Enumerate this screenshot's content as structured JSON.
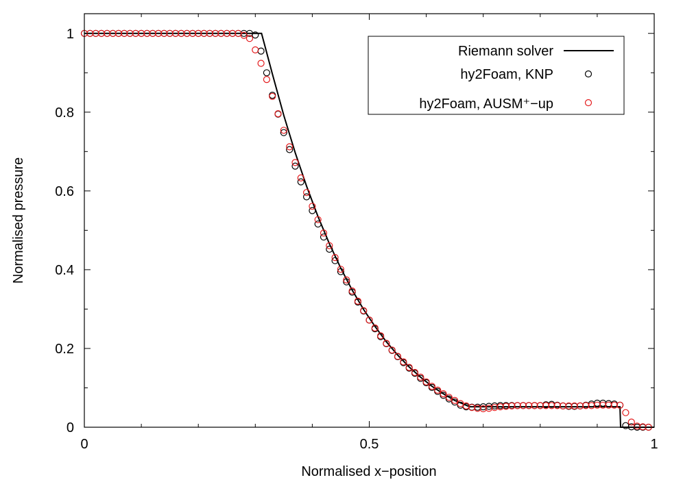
{
  "chart_data": {
    "type": "line",
    "xlabel": "Normalised x−position",
    "ylabel": "Normalised pressure",
    "xlim": [
      0,
      1
    ],
    "ylim": [
      0,
      1.05
    ],
    "x_ticks": [
      {
        "v": 0,
        "label": "0"
      },
      {
        "v": 0.5,
        "label": "0.5"
      },
      {
        "v": 1,
        "label": "1"
      }
    ],
    "x_minor_ticks": [
      0.1,
      0.2,
      0.3,
      0.4,
      0.6,
      0.7,
      0.8,
      0.9
    ],
    "y_ticks": [
      {
        "v": 0,
        "label": "0"
      },
      {
        "v": 0.2,
        "label": "0.2"
      },
      {
        "v": 0.4,
        "label": "0.4"
      },
      {
        "v": 0.6,
        "label": "0.6"
      },
      {
        "v": 0.8,
        "label": "0.8"
      },
      {
        "v": 1,
        "label": "1"
      }
    ],
    "grid": false,
    "legend_position": "top-right",
    "series": [
      {
        "name": "Riemann solver",
        "style": "line",
        "color": "#000000",
        "x": [
          0,
          0.311,
          0.33,
          0.35,
          0.37,
          0.39,
          0.41,
          0.43,
          0.45,
          0.47,
          0.49,
          0.51,
          0.53,
          0.55,
          0.57,
          0.59,
          0.61,
          0.63,
          0.65,
          0.665,
          0.676,
          0.7,
          0.75,
          0.8,
          0.85,
          0.9,
          0.94,
          0.941,
          1.0
        ],
        "y": [
          1.0,
          1.0,
          0.897,
          0.792,
          0.697,
          0.612,
          0.535,
          0.466,
          0.404,
          0.348,
          0.299,
          0.256,
          0.217,
          0.183,
          0.153,
          0.127,
          0.104,
          0.085,
          0.068,
          0.059,
          0.052,
          0.052,
          0.052,
          0.052,
          0.052,
          0.052,
          0.052,
          0.0,
          0.0
        ]
      },
      {
        "name": "hy2Foam, KNP",
        "style": "markers",
        "color": "#000000",
        "x": [
          0.0,
          0.01,
          0.02,
          0.03,
          0.04,
          0.05,
          0.06,
          0.07,
          0.08,
          0.09,
          0.1,
          0.11,
          0.12,
          0.13,
          0.14,
          0.15,
          0.16,
          0.17,
          0.18,
          0.19,
          0.2,
          0.21,
          0.22,
          0.23,
          0.24,
          0.25,
          0.26,
          0.27,
          0.28,
          0.29,
          0.3,
          0.31,
          0.32,
          0.33,
          0.34,
          0.35,
          0.36,
          0.37,
          0.38,
          0.39,
          0.4,
          0.41,
          0.42,
          0.43,
          0.44,
          0.45,
          0.46,
          0.47,
          0.48,
          0.49,
          0.5,
          0.51,
          0.52,
          0.53,
          0.54,
          0.55,
          0.56,
          0.57,
          0.58,
          0.59,
          0.6,
          0.61,
          0.62,
          0.63,
          0.64,
          0.65,
          0.66,
          0.67,
          0.68,
          0.69,
          0.7,
          0.71,
          0.72,
          0.73,
          0.74,
          0.75,
          0.76,
          0.77,
          0.78,
          0.79,
          0.8,
          0.81,
          0.82,
          0.83,
          0.84,
          0.85,
          0.86,
          0.87,
          0.88,
          0.89,
          0.9,
          0.91,
          0.92,
          0.93,
          0.94,
          0.95,
          0.96,
          0.97,
          0.98,
          0.99
        ],
        "y": [
          1.0,
          1.0,
          1.0,
          1.0,
          1.0,
          1.0,
          1.0,
          1.0,
          1.0,
          1.0,
          1.0,
          1.0,
          1.0,
          1.0,
          1.0,
          1.0,
          1.0,
          1.0,
          1.0,
          1.0,
          1.0,
          1.0,
          1.0,
          1.0,
          1.0,
          1.0,
          1.0,
          1.0,
          1.0,
          1.0,
          0.996,
          0.955,
          0.9,
          0.843,
          0.795,
          0.748,
          0.705,
          0.663,
          0.623,
          0.585,
          0.55,
          0.516,
          0.483,
          0.452,
          0.423,
          0.395,
          0.369,
          0.343,
          0.318,
          0.295,
          0.272,
          0.25,
          0.23,
          0.212,
          0.195,
          0.179,
          0.164,
          0.15,
          0.137,
          0.124,
          0.113,
          0.101,
          0.091,
          0.081,
          0.072,
          0.064,
          0.056,
          0.052,
          0.051,
          0.051,
          0.052,
          0.053,
          0.054,
          0.055,
          0.055,
          0.055,
          0.055,
          0.055,
          0.055,
          0.055,
          0.055,
          0.057,
          0.058,
          0.056,
          0.054,
          0.053,
          0.053,
          0.054,
          0.056,
          0.059,
          0.061,
          0.061,
          0.06,
          0.059,
          0.056,
          0.004,
          0.001,
          0.0,
          0.0,
          0.0
        ]
      },
      {
        "name": "hy2Foam, AUSM⁺−up",
        "style": "markers",
        "color": "#e41a1c",
        "x": [
          0.0,
          0.01,
          0.02,
          0.03,
          0.04,
          0.05,
          0.06,
          0.07,
          0.08,
          0.09,
          0.1,
          0.11,
          0.12,
          0.13,
          0.14,
          0.15,
          0.16,
          0.17,
          0.18,
          0.19,
          0.2,
          0.21,
          0.22,
          0.23,
          0.24,
          0.25,
          0.26,
          0.27,
          0.28,
          0.29,
          0.3,
          0.31,
          0.32,
          0.33,
          0.34,
          0.35,
          0.36,
          0.37,
          0.38,
          0.39,
          0.4,
          0.41,
          0.42,
          0.43,
          0.44,
          0.45,
          0.46,
          0.47,
          0.48,
          0.49,
          0.5,
          0.51,
          0.52,
          0.53,
          0.54,
          0.55,
          0.56,
          0.57,
          0.58,
          0.59,
          0.6,
          0.61,
          0.62,
          0.63,
          0.64,
          0.65,
          0.66,
          0.67,
          0.68,
          0.69,
          0.7,
          0.71,
          0.72,
          0.73,
          0.74,
          0.75,
          0.76,
          0.77,
          0.78,
          0.79,
          0.8,
          0.81,
          0.82,
          0.83,
          0.84,
          0.85,
          0.86,
          0.87,
          0.88,
          0.89,
          0.9,
          0.91,
          0.92,
          0.93,
          0.94,
          0.95,
          0.96,
          0.97,
          0.98,
          0.99
        ],
        "y": [
          1.0,
          1.0,
          1.0,
          1.0,
          1.0,
          1.0,
          1.0,
          1.0,
          1.0,
          1.0,
          1.0,
          1.0,
          1.0,
          1.0,
          1.0,
          1.0,
          1.0,
          1.0,
          1.0,
          1.0,
          1.0,
          1.0,
          1.0,
          1.0,
          1.0,
          1.0,
          1.0,
          1.0,
          0.995,
          0.987,
          0.958,
          0.924,
          0.883,
          0.84,
          0.796,
          0.754,
          0.712,
          0.672,
          0.633,
          0.596,
          0.561,
          0.527,
          0.493,
          0.461,
          0.431,
          0.401,
          0.374,
          0.346,
          0.32,
          0.296,
          0.272,
          0.252,
          0.232,
          0.213,
          0.196,
          0.18,
          0.166,
          0.152,
          0.139,
          0.127,
          0.115,
          0.104,
          0.094,
          0.085,
          0.076,
          0.068,
          0.06,
          0.054,
          0.05,
          0.048,
          0.047,
          0.048,
          0.05,
          0.052,
          0.053,
          0.054,
          0.055,
          0.055,
          0.055,
          0.055,
          0.055,
          0.055,
          0.055,
          0.055,
          0.054,
          0.054,
          0.054,
          0.054,
          0.055,
          0.055,
          0.056,
          0.056,
          0.056,
          0.056,
          0.056,
          0.037,
          0.013,
          0.003,
          0.001,
          0.0
        ]
      }
    ]
  }
}
